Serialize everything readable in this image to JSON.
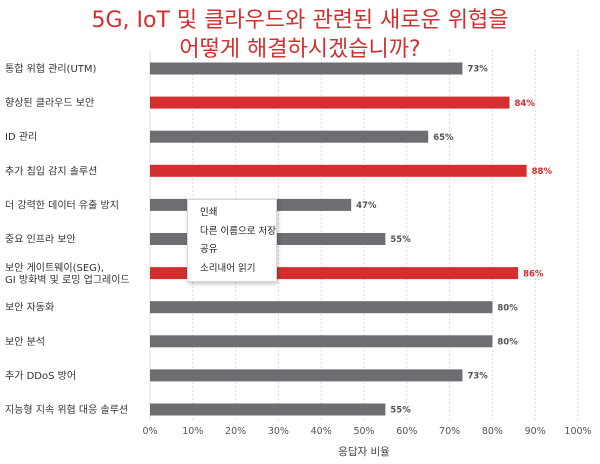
{
  "title_line1": "5G, IoT 및 클라우드와 관련된 새로운 위협을",
  "title_line2": "어떻게 해결하시겠습니까?",
  "colors": {
    "title": "#d42e2f",
    "bar_gray": "#6f6c72",
    "bar_red": "#d42e2f",
    "grid": "#dddddd"
  },
  "context_menu": {
    "items": [
      "인쇄",
      "다른 이름으로 저장",
      "공유",
      "소리내어 읽기"
    ]
  },
  "chart_data": {
    "type": "bar",
    "orientation": "horizontal",
    "title": "5G, IoT 및 클라우드와 관련된 새로운 위협을 어떻게 해결하시겠습니까?",
    "xlabel": "응답자 비율",
    "ylabel": "",
    "xlim": [
      0,
      100
    ],
    "ticks": [
      "0%",
      "10%",
      "20%",
      "30%",
      "40%",
      "50%",
      "60%",
      "70%",
      "80%",
      "90%",
      "100%"
    ],
    "grid": true,
    "categories": [
      [
        "통합 위협 관리(UTM)"
      ],
      [
        "향상된 클라우드 보안"
      ],
      [
        "ID 관리"
      ],
      [
        "추가 침입 감지 솔루션"
      ],
      [
        "더 강력한 데이터 유출 방지"
      ],
      [
        "중요 인프라 보안"
      ],
      [
        "보안 게이트웨이(SEG),",
        "GI 방화벽 및 로밍 업그레이드"
      ],
      [
        "보안 자동화"
      ],
      [
        "보안 분석"
      ],
      [
        "추가 DDoS 방어"
      ],
      [
        "지능형 지속 위협 대응 솔루션"
      ]
    ],
    "values": [
      73,
      84,
      65,
      88,
      47,
      55,
      86,
      80,
      80,
      73,
      55
    ],
    "value_labels": [
      "73%",
      "84%",
      "65%",
      "88%",
      "47%",
      "55%",
      "86%",
      "80%",
      "80%",
      "73%",
      "55%"
    ],
    "highlighted": [
      false,
      true,
      false,
      true,
      false,
      false,
      true,
      false,
      false,
      false,
      false
    ]
  }
}
